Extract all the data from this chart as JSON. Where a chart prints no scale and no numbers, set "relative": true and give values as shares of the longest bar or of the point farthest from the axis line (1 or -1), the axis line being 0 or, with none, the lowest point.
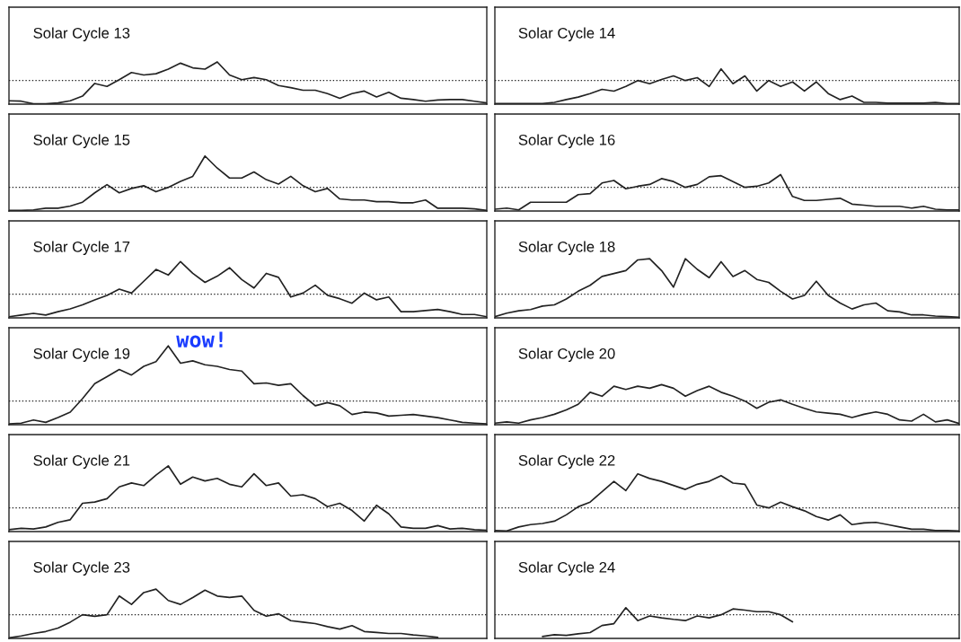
{
  "chart_data": [
    {
      "type": "line",
      "relative": true,
      "title": "Solar Cycle 13",
      "categories": [
        null,
        null,
        null,
        null,
        null,
        null,
        null,
        null,
        null,
        null,
        null,
        null,
        null,
        null,
        null,
        null,
        null,
        null,
        null,
        null,
        null,
        null,
        null,
        null,
        null,
        null,
        null,
        null,
        null,
        null,
        null,
        null,
        null,
        null,
        null,
        null,
        null,
        null,
        null,
        null
      ],
      "series": [
        {
          "color": "#222222",
          "values": [
            0.08,
            0.07,
            0.01,
            0.01,
            0.03,
            0.08,
            0.19,
            0.49,
            0.42,
            0.58,
            0.75,
            0.69,
            0.72,
            0.83,
            0.97,
            0.86,
            0.83,
            1,
            0.69,
            0.58,
            0.63,
            0.58,
            0.44,
            0.39,
            0.33,
            0.33,
            0.25,
            0.14,
            0.25,
            0.31,
            0.17,
            0.28,
            0.14,
            0.11,
            0.07,
            0.1,
            0.11,
            0.11,
            0.07,
            0.03
          ]
        }
      ],
      "ref_lines": [
        {
          "axis": "y",
          "value": 0.56,
          "color": "#222222",
          "line_style": "dotted"
        }
      ],
      "tick_labels": false
    },
    {
      "type": "line",
      "relative": true,
      "title": "Solar Cycle 14",
      "categories": [
        null,
        null,
        null,
        null,
        null,
        null,
        null,
        null,
        null,
        null,
        null,
        null,
        null,
        null,
        null,
        null,
        null,
        null,
        null,
        null,
        null,
        null,
        null,
        null,
        null,
        null,
        null,
        null,
        null,
        null,
        null,
        null,
        null,
        null,
        null,
        null,
        null,
        null,
        null,
        null
      ],
      "series": [
        {
          "color": "#222222",
          "values": [
            0.02,
            0.02,
            0.02,
            0.02,
            0.02,
            0.05,
            0.13,
            0.2,
            0.3,
            0.42,
            0.37,
            0.5,
            0.67,
            0.58,
            0.7,
            0.8,
            0.67,
            0.75,
            0.5,
            1,
            0.58,
            0.8,
            0.37,
            0.67,
            0.5,
            0.63,
            0.37,
            0.63,
            0.3,
            0.13,
            0.23,
            0.05,
            0.05,
            0.03,
            0.03,
            0.03,
            0.03,
            0.05,
            0.02,
            0.02
          ]
        }
      ],
      "ref_lines": [
        {
          "axis": "y",
          "value": 0.67,
          "color": "#222222",
          "line_style": "dotted"
        }
      ],
      "tick_labels": false
    },
    {
      "type": "line",
      "relative": true,
      "title": "Solar Cycle 15",
      "categories": [
        null,
        null,
        null,
        null,
        null,
        null,
        null,
        null,
        null,
        null,
        null,
        null,
        null,
        null,
        null,
        null,
        null,
        null,
        null,
        null,
        null,
        null,
        null,
        null,
        null,
        null,
        null,
        null,
        null,
        null,
        null,
        null,
        null,
        null,
        null,
        null,
        null,
        null,
        null,
        null
      ],
      "series": [
        {
          "color": "#222222",
          "values": [
            0.01,
            0.01,
            0.02,
            0.05,
            0.05,
            0.09,
            0.16,
            0.33,
            0.48,
            0.33,
            0.41,
            0.46,
            0.35,
            0.43,
            0.54,
            0.63,
            1,
            0.78,
            0.6,
            0.6,
            0.71,
            0.57,
            0.49,
            0.63,
            0.46,
            0.35,
            0.41,
            0.22,
            0.2,
            0.2,
            0.17,
            0.17,
            0.15,
            0.15,
            0.2,
            0.05,
            0.05,
            0.05,
            0.04,
            0.01
          ]
        }
      ],
      "ref_lines": [
        {
          "axis": "y",
          "value": 0.43,
          "color": "#222222",
          "line_style": "dotted"
        }
      ],
      "tick_labels": false
    },
    {
      "type": "line",
      "relative": true,
      "title": "Solar Cycle 16",
      "categories": [
        null,
        null,
        null,
        null,
        null,
        null,
        null,
        null,
        null,
        null,
        null,
        null,
        null,
        null,
        null,
        null,
        null,
        null,
        null,
        null,
        null,
        null,
        null,
        null,
        null,
        null,
        null,
        null,
        null,
        null,
        null,
        null,
        null,
        null,
        null,
        null,
        null,
        null,
        null,
        null
      ],
      "series": [
        {
          "color": "#222222",
          "values": [
            0.05,
            0.08,
            0.03,
            0.24,
            0.24,
            0.24,
            0.24,
            0.45,
            0.48,
            0.77,
            0.84,
            0.61,
            0.68,
            0.73,
            0.89,
            0.81,
            0.65,
            0.73,
            0.94,
            0.97,
            0.81,
            0.65,
            0.68,
            0.77,
            1,
            0.4,
            0.29,
            0.29,
            0.32,
            0.35,
            0.19,
            0.16,
            0.13,
            0.13,
            0.13,
            0.08,
            0.13,
            0.05,
            0.03,
            0.03
          ]
        }
      ],
      "ref_lines": [
        {
          "axis": "y",
          "value": 0.65,
          "color": "#222222",
          "line_style": "dotted"
        }
      ],
      "tick_labels": false
    },
    {
      "type": "line",
      "relative": true,
      "title": "Solar Cycle 17",
      "categories": [
        null,
        null,
        null,
        null,
        null,
        null,
        null,
        null,
        null,
        null,
        null,
        null,
        null,
        null,
        null,
        null,
        null,
        null,
        null,
        null,
        null,
        null,
        null,
        null,
        null,
        null,
        null,
        null,
        null,
        null,
        null,
        null,
        null,
        null,
        null,
        null,
        null,
        null,
        null,
        null
      ],
      "series": [
        {
          "color": "#222222",
          "values": [
            0.02,
            0.05,
            0.08,
            0.05,
            0.11,
            0.16,
            0.23,
            0.32,
            0.4,
            0.51,
            0.44,
            0.65,
            0.86,
            0.76,
            1,
            0.79,
            0.63,
            0.74,
            0.89,
            0.68,
            0.53,
            0.79,
            0.72,
            0.37,
            0.44,
            0.58,
            0.4,
            0.34,
            0.26,
            0.44,
            0.32,
            0.37,
            0.11,
            0.11,
            0.13,
            0.15,
            0.11,
            0.06,
            0.06,
            0.02
          ]
        }
      ],
      "ref_lines": [
        {
          "axis": "y",
          "value": 0.42,
          "color": "#222222",
          "line_style": "dotted"
        }
      ],
      "tick_labels": false
    },
    {
      "type": "line",
      "relative": true,
      "title": "Solar Cycle 18",
      "categories": [
        null,
        null,
        null,
        null,
        null,
        null,
        null,
        null,
        null,
        null,
        null,
        null,
        null,
        null,
        null,
        null,
        null,
        null,
        null,
        null,
        null,
        null,
        null,
        null,
        null,
        null,
        null,
        null,
        null,
        null,
        null,
        null,
        null,
        null,
        null,
        null,
        null,
        null,
        null,
        null
      ],
      "series": [
        {
          "color": "#222222",
          "values": [
            0.02,
            0.08,
            0.12,
            0.14,
            0.2,
            0.22,
            0.32,
            0.45,
            0.55,
            0.7,
            0.75,
            0.8,
            0.98,
            1,
            0.8,
            0.52,
            1,
            0.82,
            0.68,
            0.95,
            0.7,
            0.8,
            0.65,
            0.6,
            0.45,
            0.32,
            0.38,
            0.62,
            0.38,
            0.25,
            0.15,
            0.22,
            0.25,
            0.12,
            0.1,
            0.05,
            0.05,
            0.03,
            0.02,
            0.01
          ]
        }
      ],
      "ref_lines": [
        {
          "axis": "y",
          "value": 0.4,
          "color": "#222222",
          "line_style": "dotted"
        }
      ],
      "tick_labels": false
    },
    {
      "type": "line",
      "relative": true,
      "title": "Solar Cycle 19",
      "annotations": [
        "wow!"
      ],
      "categories": [
        null,
        null,
        null,
        null,
        null,
        null,
        null,
        null,
        null,
        null,
        null,
        null,
        null,
        null,
        null,
        null,
        null,
        null,
        null,
        null,
        null,
        null,
        null,
        null,
        null,
        null,
        null,
        null,
        null,
        null,
        null,
        null,
        null,
        null,
        null,
        null,
        null,
        null,
        null,
        null
      ],
      "series": [
        {
          "color": "#222222",
          "values": [
            0.01,
            0.02,
            0.06,
            0.03,
            0.09,
            0.16,
            0.33,
            0.52,
            0.61,
            0.7,
            0.63,
            0.74,
            0.8,
            1,
            0.78,
            0.81,
            0.76,
            0.74,
            0.7,
            0.68,
            0.52,
            0.53,
            0.5,
            0.52,
            0.37,
            0.24,
            0.28,
            0.24,
            0.13,
            0.16,
            0.15,
            0.11,
            0.12,
            0.13,
            0.11,
            0.09,
            0.06,
            0.03,
            0.02,
            0.01
          ]
        }
      ],
      "ref_lines": [
        {
          "axis": "y",
          "value": 0.3,
          "color": "#222222",
          "line_style": "dotted"
        }
      ],
      "tick_labels": false
    },
    {
      "type": "line",
      "relative": true,
      "title": "Solar Cycle 20",
      "categories": [
        null,
        null,
        null,
        null,
        null,
        null,
        null,
        null,
        null,
        null,
        null,
        null,
        null,
        null,
        null,
        null,
        null,
        null,
        null,
        null,
        null,
        null,
        null,
        null,
        null,
        null,
        null,
        null,
        null,
        null,
        null,
        null,
        null,
        null,
        null,
        null,
        null,
        null,
        null,
        null
      ],
      "series": [
        {
          "color": "#222222",
          "values": [
            0.04,
            0.07,
            0.04,
            0.12,
            0.18,
            0.26,
            0.37,
            0.51,
            0.81,
            0.71,
            0.96,
            0.88,
            0.96,
            0.91,
            1,
            0.91,
            0.71,
            0.85,
            0.96,
            0.81,
            0.71,
            0.59,
            0.41,
            0.56,
            0.62,
            0.51,
            0.41,
            0.32,
            0.29,
            0.26,
            0.18,
            0.26,
            0.32,
            0.26,
            0.12,
            0.09,
            0.26,
            0.07,
            0.12,
            0.03
          ]
        }
      ],
      "ref_lines": [
        {
          "axis": "y",
          "value": 0.59,
          "color": "#222222",
          "line_style": "dotted"
        }
      ],
      "tick_labels": false
    },
    {
      "type": "line",
      "relative": true,
      "title": "Solar Cycle 21",
      "categories": [
        null,
        null,
        null,
        null,
        null,
        null,
        null,
        null,
        null,
        null,
        null,
        null,
        null,
        null,
        null,
        null,
        null,
        null,
        null,
        null,
        null,
        null,
        null,
        null,
        null,
        null,
        null,
        null,
        null,
        null,
        null,
        null,
        null,
        null,
        null,
        null,
        null,
        null,
        null,
        null
      ],
      "series": [
        {
          "color": "#222222",
          "values": [
            0.03,
            0.05,
            0.04,
            0.07,
            0.14,
            0.18,
            0.43,
            0.45,
            0.5,
            0.68,
            0.74,
            0.7,
            0.86,
            1,
            0.72,
            0.83,
            0.77,
            0.81,
            0.72,
            0.68,
            0.88,
            0.7,
            0.74,
            0.54,
            0.56,
            0.5,
            0.38,
            0.43,
            0.32,
            0.16,
            0.4,
            0.27,
            0.07,
            0.05,
            0.05,
            0.09,
            0.04,
            0.05,
            0.03,
            0.02
          ]
        }
      ],
      "ref_lines": [
        {
          "axis": "y",
          "value": 0.36,
          "color": "#222222",
          "line_style": "dotted"
        }
      ],
      "tick_labels": false
    },
    {
      "type": "line",
      "relative": true,
      "title": "Solar Cycle 22",
      "categories": [
        null,
        null,
        null,
        null,
        null,
        null,
        null,
        null,
        null,
        null,
        null,
        null,
        null,
        null,
        null,
        null,
        null,
        null,
        null,
        null,
        null,
        null,
        null,
        null,
        null,
        null,
        null,
        null,
        null,
        null,
        null,
        null,
        null,
        null,
        null,
        null,
        null,
        null,
        null,
        null
      ],
      "series": [
        {
          "color": "#222222",
          "values": [
            0.02,
            0.01,
            0.08,
            0.12,
            0.14,
            0.18,
            0.29,
            0.43,
            0.51,
            0.69,
            0.87,
            0.71,
            1,
            0.92,
            0.87,
            0.8,
            0.73,
            0.82,
            0.87,
            0.97,
            0.84,
            0.82,
            0.46,
            0.41,
            0.51,
            0.43,
            0.36,
            0.26,
            0.2,
            0.29,
            0.12,
            0.15,
            0.16,
            0.12,
            0.08,
            0.04,
            0.04,
            0.02,
            0.02,
            0.01
          ]
        }
      ],
      "ref_lines": [
        {
          "axis": "y",
          "value": 0.41,
          "color": "#222222",
          "line_style": "dotted"
        }
      ],
      "tick_labels": false
    },
    {
      "type": "line",
      "relative": true,
      "title": "Solar Cycle 23",
      "categories": [
        null,
        null,
        null,
        null,
        null,
        null,
        null,
        null,
        null,
        null,
        null,
        null,
        null,
        null,
        null,
        null,
        null,
        null,
        null,
        null,
        null,
        null,
        null,
        null,
        null,
        null,
        null,
        null,
        null,
        null,
        null,
        null,
        null,
        null,
        null,
        null,
        null,
        null,
        null,
        null
      ],
      "series": [
        {
          "color": "#222222",
          "values": [
            0.01,
            0.05,
            0.1,
            0.14,
            0.21,
            0.33,
            0.48,
            0.45,
            0.48,
            0.86,
            0.69,
            0.93,
            1,
            0.77,
            0.69,
            0.83,
            0.98,
            0.86,
            0.83,
            0.86,
            0.57,
            0.45,
            0.5,
            0.36,
            0.33,
            0.3,
            0.24,
            0.19,
            0.26,
            0.14,
            0.12,
            0.1,
            0.1,
            0.07,
            0.05,
            0.02,
            null,
            null,
            null,
            null
          ]
        }
      ],
      "ref_lines": [
        {
          "axis": "y",
          "value": 0.48,
          "color": "#222222",
          "line_style": "dotted"
        }
      ],
      "tick_labels": false
    },
    {
      "type": "line",
      "relative": true,
      "title": "Solar Cycle 24",
      "categories": [
        null,
        null,
        null,
        null,
        null,
        null,
        null,
        null,
        null,
        null,
        null,
        null,
        null,
        null,
        null,
        null,
        null,
        null,
        null,
        null,
        null,
        null,
        null,
        null,
        null,
        null,
        null,
        null,
        null,
        null,
        null,
        null,
        null,
        null,
        null,
        null,
        null,
        null,
        null,
        null
      ],
      "series": [
        {
          "color": "#222222",
          "values": [
            null,
            null,
            null,
            null,
            0.06,
            0.12,
            0.1,
            0.15,
            0.19,
            0.42,
            0.48,
            1,
            0.58,
            0.73,
            0.67,
            0.62,
            0.58,
            0.73,
            0.67,
            0.77,
            0.96,
            0.92,
            0.87,
            0.87,
            0.77,
            0.54,
            null,
            null,
            null,
            null,
            null,
            null,
            null,
            null,
            null,
            null,
            null,
            null,
            null,
            null
          ]
        }
      ],
      "ref_lines": [
        {
          "axis": "y",
          "value": 0.77,
          "color": "#222222",
          "line_style": "dotted"
        }
      ],
      "tick_labels": false
    }
  ]
}
